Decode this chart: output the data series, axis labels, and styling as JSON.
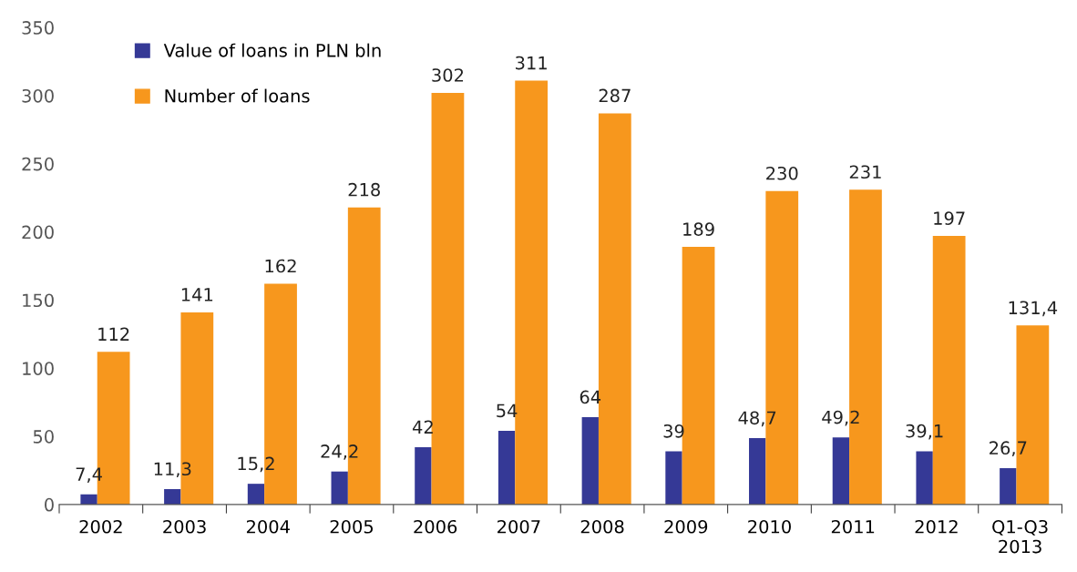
{
  "chart_data": {
    "type": "bar",
    "categories": [
      "2002",
      "2003",
      "2004",
      "2005",
      "2006",
      "2007",
      "2008",
      "2009",
      "2010",
      "2011",
      "2012",
      "Q1-Q3\n2013"
    ],
    "series": [
      {
        "name": "Value of loans in PLN bln",
        "color": "#353996",
        "values": [
          7.4,
          11.3,
          15.2,
          24.2,
          42,
          54,
          64,
          39,
          48.7,
          49.2,
          39.1,
          26.7
        ],
        "value_labels": [
          "7,4",
          "11,3",
          "15,2",
          "24,2",
          "42",
          "54",
          "64",
          "39",
          "48,7",
          "49,2",
          "39,1",
          "26,7"
        ]
      },
      {
        "name": "Number of loans",
        "color": "#f7971d",
        "values": [
          112,
          141,
          162,
          218,
          302,
          311,
          287,
          189,
          230,
          231,
          197,
          131.4
        ],
        "value_labels": [
          "112",
          "141",
          "162",
          "218",
          "302",
          "311",
          "287",
          "189",
          "230",
          "231",
          "197",
          "131,4"
        ]
      }
    ],
    "ylim": [
      0,
      350
    ],
    "yticks": [
      0,
      50,
      100,
      150,
      200,
      250,
      300,
      350
    ],
    "grid": false,
    "legend": "top left"
  }
}
